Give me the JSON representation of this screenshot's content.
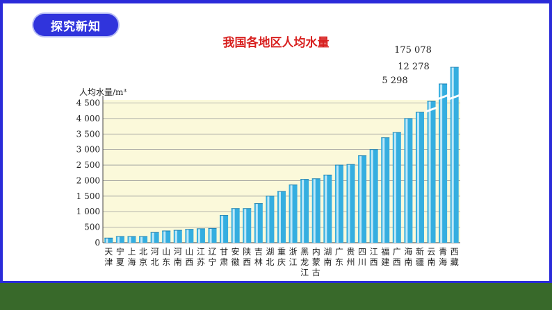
{
  "header": {
    "badge_label": "探究新知"
  },
  "chart_data": {
    "type": "bar",
    "title": "我国各地区人均水量",
    "ylabel": "人均水量/m³",
    "ylim": [
      0,
      4600
    ],
    "yticks": [
      0,
      500,
      1000,
      1500,
      2000,
      2500,
      3000,
      3500,
      4000,
      4500
    ],
    "ytick_labels": [
      "0",
      "500",
      "1 000",
      "1 500",
      "2 000",
      "2 500",
      "3 000",
      "3 500",
      "4 000",
      "4 500"
    ],
    "categories": [
      "天津",
      "宁夏",
      "上海",
      "北京",
      "河北",
      "山东",
      "河南",
      "山西",
      "江苏",
      "辽宁",
      "甘肃",
      "安徽",
      "陕西",
      "吉林",
      "湖北",
      "重庆",
      "浙江",
      "黑龙江",
      "内蒙古",
      "湖南",
      "广东",
      "贵州",
      "四川",
      "江西",
      "福建",
      "广西",
      "海南",
      "新疆",
      "云南",
      "青海",
      "西藏"
    ],
    "category_labels": [
      "天津",
      "宁夏",
      "上海",
      "北京",
      "河北",
      "山东",
      "河南",
      "山西",
      "江苏",
      "辽宁",
      "甘肃",
      "安徽",
      "陕西",
      "吉林",
      "湖北",
      "重庆",
      "浙江",
      "黑龙江",
      "内蒙古",
      "湖南",
      "广东",
      "贵州",
      "四川",
      "江西",
      "福建",
      "广西",
      "海南",
      "新疆",
      "云南",
      "青海",
      "西藏"
    ],
    "values": [
      150,
      200,
      200,
      200,
      330,
      380,
      400,
      430,
      450,
      460,
      880,
      1100,
      1100,
      1260,
      1500,
      1650,
      1860,
      2040,
      2060,
      2180,
      2500,
      2520,
      2800,
      3000,
      3380,
      3550,
      4000,
      4200,
      5298,
      12278,
      175078
    ],
    "series_color": "#35aee0",
    "plot_background": "#fbf9da",
    "annotations": [
      {
        "category": "云南",
        "text": "5 298"
      },
      {
        "category": "青海",
        "text": "12 278"
      },
      {
        "category": "西藏",
        "text": "175 078"
      }
    ],
    "axis_break": true
  }
}
